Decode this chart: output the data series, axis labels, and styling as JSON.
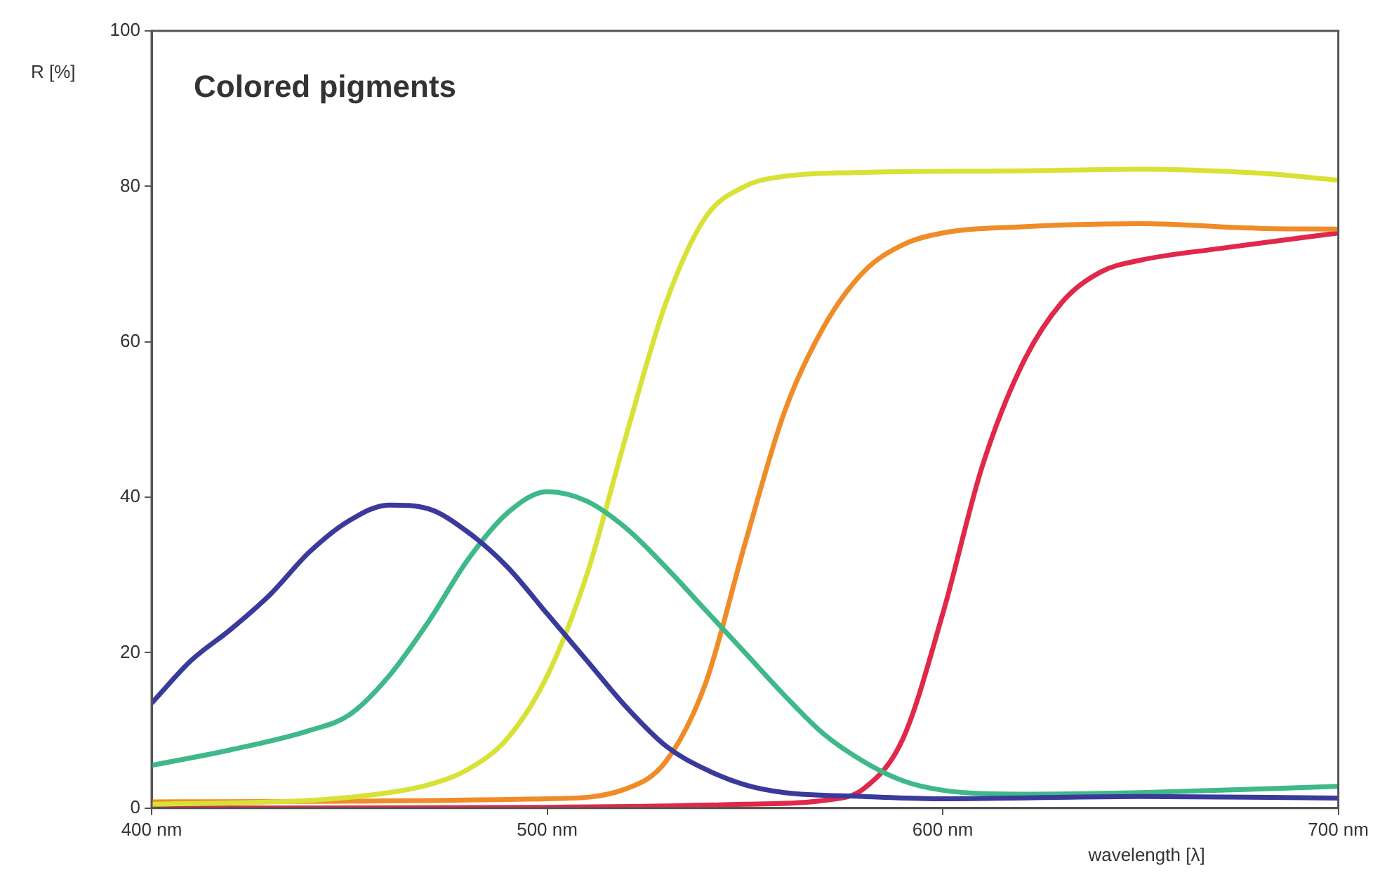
{
  "chart_data": {
    "type": "line",
    "title": "Colored pigments",
    "xlabel": "wavelength [λ]",
    "ylabel": "R [%]",
    "xlim": [
      400,
      700
    ],
    "xticks": [
      {
        "value": 400,
        "label": "400 nm"
      },
      {
        "value": 500,
        "label": "500 nm"
      },
      {
        "value": 600,
        "label": "600 nm"
      },
      {
        "value": 700,
        "label": "700 nm"
      }
    ],
    "ylim": [
      0,
      100
    ],
    "yticks": [
      0,
      20,
      40,
      60,
      80,
      100
    ],
    "grid": false,
    "legend": false,
    "marker": "none",
    "line_style": "solid",
    "series": [
      {
        "color": "#3a3a9c",
        "x": [
          400,
          410,
          420,
          430,
          440,
          450,
          460,
          470,
          480,
          490,
          500,
          510,
          520,
          530,
          540,
          550,
          560,
          580,
          600,
          650,
          700
        ],
        "values": [
          13.5,
          19,
          23,
          27.5,
          33,
          37,
          39,
          38.5,
          35.5,
          31,
          25,
          19,
          13,
          8,
          5,
          3,
          2,
          1.5,
          1.2,
          1.5,
          1.3
        ]
      },
      {
        "color": "#3fb88a",
        "x": [
          400,
          420,
          440,
          450,
          460,
          470,
          480,
          490,
          500,
          510,
          520,
          530,
          540,
          550,
          560,
          570,
          580,
          590,
          600,
          620,
          650,
          700
        ],
        "values": [
          5.5,
          7.5,
          10,
          12,
          17,
          24,
          32,
          38,
          40.7,
          39.5,
          36,
          31,
          25.5,
          20,
          14.5,
          9.5,
          6,
          3.5,
          2.3,
          1.8,
          2,
          2.8
        ]
      },
      {
        "color": "#d8e236",
        "x": [
          400,
          440,
          460,
          470,
          480,
          490,
          500,
          510,
          520,
          530,
          540,
          550,
          560,
          580,
          620,
          650,
          680,
          700
        ],
        "values": [
          0.5,
          1,
          2,
          3,
          5,
          9,
          17,
          30,
          48,
          65,
          76,
          80,
          81.3,
          81.8,
          82,
          82.2,
          81.7,
          80.8
        ]
      },
      {
        "color": "#f08c28",
        "x": [
          400,
          500,
          520,
          530,
          540,
          550,
          560,
          570,
          580,
          590,
          600,
          620,
          650,
          680,
          700
        ],
        "values": [
          0.8,
          1.2,
          2.5,
          6,
          16,
          34,
          51,
          62,
          69,
          72.5,
          74,
          74.8,
          75.2,
          74.6,
          74.5
        ]
      },
      {
        "color": "#e0284a",
        "x": [
          400,
          500,
          550,
          570,
          580,
          590,
          600,
          610,
          620,
          630,
          640,
          650,
          670,
          700
        ],
        "values": [
          0,
          0.1,
          0.5,
          1,
          2.5,
          9,
          25,
          44,
          57,
          65,
          69,
          70.5,
          72,
          74
        ]
      }
    ]
  }
}
